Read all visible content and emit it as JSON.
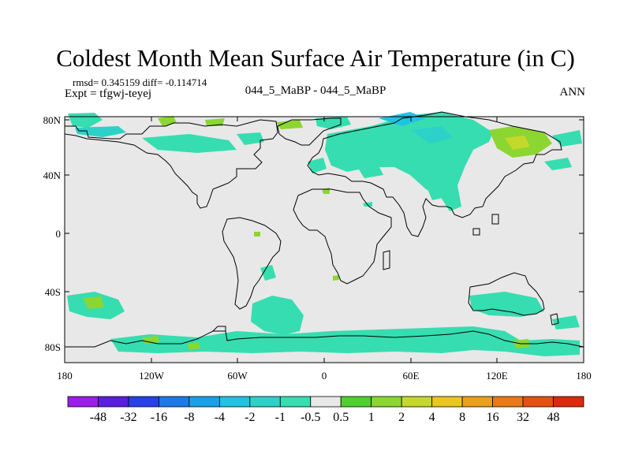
{
  "title": "Coldest Month Mean Surface Air Temperature (in C)",
  "stats": {
    "rmsd_label": "rmsd= 0.345159 diff= -0.114714"
  },
  "expt_label": "Expt = tfgwj-teyej",
  "center_label": "044_5_MaBP - 044_5_MaBP",
  "season_label": "ANN",
  "lat_labels": [
    "80N",
    "40N",
    "0",
    "40S",
    "80S"
  ],
  "lon_labels": [
    "180",
    "120W",
    "60W",
    "0",
    "60E",
    "120E",
    "180"
  ],
  "colorbar": {
    "colors": [
      "#9a1ee6",
      "#5a1ee0",
      "#2840e8",
      "#1e78e6",
      "#1aa0e6",
      "#20c3e0",
      "#2cd2c8",
      "#36ddb0",
      "#e8e8e8",
      "#50d030",
      "#8cd632",
      "#c4d82c",
      "#e8c81e",
      "#eaa01a",
      "#ea7a18",
      "#e65012",
      "#dc280c"
    ],
    "labels": [
      "-48",
      "-32",
      "-16",
      "-8",
      "-4",
      "-2",
      "-1",
      "-0.5",
      "0.5",
      "1",
      "2",
      "4",
      "8",
      "16",
      "32",
      "48"
    ]
  },
  "palette": {
    "background": "#e8e8e8",
    "cool": "#36ddb0",
    "warm": "#8cd632"
  }
}
